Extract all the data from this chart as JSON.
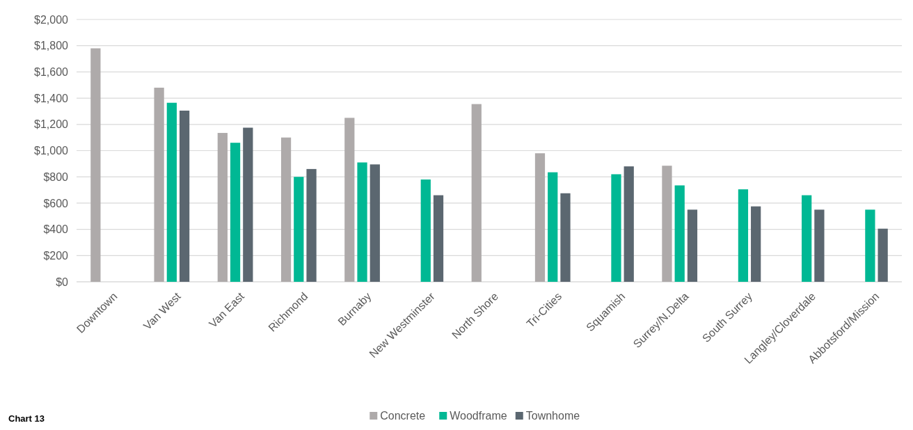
{
  "chart_data": {
    "type": "bar",
    "categories": [
      "Downtown",
      "Van West",
      "Van East",
      "Richmond",
      "Burnaby",
      "New Westminster",
      "North Shore",
      "Tri-Cities",
      "Squamish",
      "Surrey/N.Delta",
      "South Surrey",
      "Langley/Cloverdale",
      "Abbotsford/Mission"
    ],
    "series": [
      {
        "name": "Concrete",
        "color": "#aeaaaa",
        "values": [
          1780,
          1480,
          1135,
          1100,
          1250,
          null,
          1355,
          980,
          null,
          885,
          null,
          null,
          null
        ]
      },
      {
        "name": "Woodframe",
        "color": "#00b894",
        "values": [
          null,
          1365,
          1060,
          800,
          910,
          780,
          null,
          835,
          820,
          735,
          705,
          660,
          550
        ]
      },
      {
        "name": "Townhome",
        "color": "#5b6770",
        "values": [
          null,
          1305,
          1175,
          860,
          895,
          660,
          null,
          675,
          880,
          550,
          575,
          550,
          405
        ]
      }
    ],
    "ylim": [
      0,
      2000
    ],
    "yticks": [
      {
        "value": 0,
        "label": "$0"
      },
      {
        "value": 200,
        "label": "$200"
      },
      {
        "value": 400,
        "label": "$400"
      },
      {
        "value": 600,
        "label": "$600"
      },
      {
        "value": 800,
        "label": "$800"
      },
      {
        "value": 1000,
        "label": "$1,000"
      },
      {
        "value": 1200,
        "label": "$1,200"
      },
      {
        "value": 1400,
        "label": "$1,400"
      },
      {
        "value": 1600,
        "label": "$1,600"
      },
      {
        "value": 1800,
        "label": "$1,800"
      },
      {
        "value": 2000,
        "label": "$2,000"
      }
    ],
    "grid": "y",
    "legend": "bottom",
    "annotations": [
      "Chart 13"
    ]
  }
}
